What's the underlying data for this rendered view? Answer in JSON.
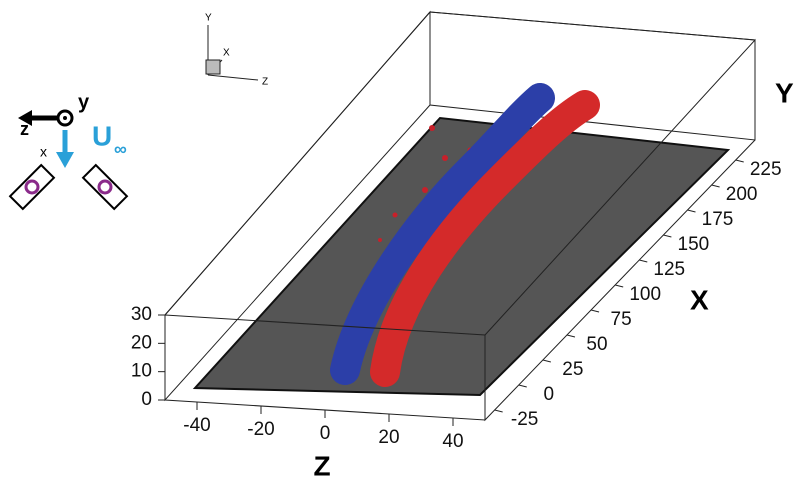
{
  "axes": {
    "x": {
      "label": "X",
      "ticks": [
        -25,
        0,
        25,
        50,
        75,
        100,
        125,
        150,
        175,
        200,
        225
      ]
    },
    "y": {
      "label": "Y",
      "ticks": [
        0,
        10,
        20,
        30
      ]
    },
    "z": {
      "label": "Z",
      "ticks": [
        -40,
        -20,
        0,
        20,
        40
      ]
    }
  },
  "triad": {
    "y": "Y",
    "x": "X",
    "z": "Z"
  },
  "inset": {
    "z": "z",
    "y": "y",
    "x": "x",
    "u": "U",
    "inf": "∞"
  }
}
